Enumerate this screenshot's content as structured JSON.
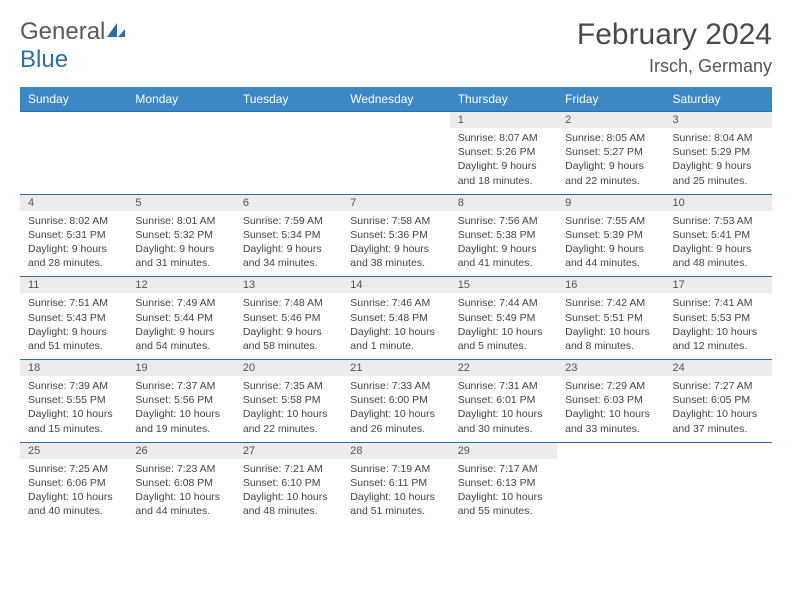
{
  "brand": {
    "text1": "General",
    "text2": "Blue"
  },
  "title": "February 2024",
  "location": "Irsch, Germany",
  "colors": {
    "header_bg": "#3b88c4",
    "header_text": "#ffffff",
    "daynum_bg": "#ececec",
    "border": "#2d6ea8",
    "body_text": "#444444",
    "title_text": "#4a4a4a"
  },
  "day_headers": [
    "Sunday",
    "Monday",
    "Tuesday",
    "Wednesday",
    "Thursday",
    "Friday",
    "Saturday"
  ],
  "weeks": [
    [
      null,
      null,
      null,
      null,
      {
        "n": "1",
        "sr": "8:07 AM",
        "ss": "5:26 PM",
        "dl": "9 hours and 18 minutes."
      },
      {
        "n": "2",
        "sr": "8:05 AM",
        "ss": "5:27 PM",
        "dl": "9 hours and 22 minutes."
      },
      {
        "n": "3",
        "sr": "8:04 AM",
        "ss": "5:29 PM",
        "dl": "9 hours and 25 minutes."
      }
    ],
    [
      {
        "n": "4",
        "sr": "8:02 AM",
        "ss": "5:31 PM",
        "dl": "9 hours and 28 minutes."
      },
      {
        "n": "5",
        "sr": "8:01 AM",
        "ss": "5:32 PM",
        "dl": "9 hours and 31 minutes."
      },
      {
        "n": "6",
        "sr": "7:59 AM",
        "ss": "5:34 PM",
        "dl": "9 hours and 34 minutes."
      },
      {
        "n": "7",
        "sr": "7:58 AM",
        "ss": "5:36 PM",
        "dl": "9 hours and 38 minutes."
      },
      {
        "n": "8",
        "sr": "7:56 AM",
        "ss": "5:38 PM",
        "dl": "9 hours and 41 minutes."
      },
      {
        "n": "9",
        "sr": "7:55 AM",
        "ss": "5:39 PM",
        "dl": "9 hours and 44 minutes."
      },
      {
        "n": "10",
        "sr": "7:53 AM",
        "ss": "5:41 PM",
        "dl": "9 hours and 48 minutes."
      }
    ],
    [
      {
        "n": "11",
        "sr": "7:51 AM",
        "ss": "5:43 PM",
        "dl": "9 hours and 51 minutes."
      },
      {
        "n": "12",
        "sr": "7:49 AM",
        "ss": "5:44 PM",
        "dl": "9 hours and 54 minutes."
      },
      {
        "n": "13",
        "sr": "7:48 AM",
        "ss": "5:46 PM",
        "dl": "9 hours and 58 minutes."
      },
      {
        "n": "14",
        "sr": "7:46 AM",
        "ss": "5:48 PM",
        "dl": "10 hours and 1 minute."
      },
      {
        "n": "15",
        "sr": "7:44 AM",
        "ss": "5:49 PM",
        "dl": "10 hours and 5 minutes."
      },
      {
        "n": "16",
        "sr": "7:42 AM",
        "ss": "5:51 PM",
        "dl": "10 hours and 8 minutes."
      },
      {
        "n": "17",
        "sr": "7:41 AM",
        "ss": "5:53 PM",
        "dl": "10 hours and 12 minutes."
      }
    ],
    [
      {
        "n": "18",
        "sr": "7:39 AM",
        "ss": "5:55 PM",
        "dl": "10 hours and 15 minutes."
      },
      {
        "n": "19",
        "sr": "7:37 AM",
        "ss": "5:56 PM",
        "dl": "10 hours and 19 minutes."
      },
      {
        "n": "20",
        "sr": "7:35 AM",
        "ss": "5:58 PM",
        "dl": "10 hours and 22 minutes."
      },
      {
        "n": "21",
        "sr": "7:33 AM",
        "ss": "6:00 PM",
        "dl": "10 hours and 26 minutes."
      },
      {
        "n": "22",
        "sr": "7:31 AM",
        "ss": "6:01 PM",
        "dl": "10 hours and 30 minutes."
      },
      {
        "n": "23",
        "sr": "7:29 AM",
        "ss": "6:03 PM",
        "dl": "10 hours and 33 minutes."
      },
      {
        "n": "24",
        "sr": "7:27 AM",
        "ss": "6:05 PM",
        "dl": "10 hours and 37 minutes."
      }
    ],
    [
      {
        "n": "25",
        "sr": "7:25 AM",
        "ss": "6:06 PM",
        "dl": "10 hours and 40 minutes."
      },
      {
        "n": "26",
        "sr": "7:23 AM",
        "ss": "6:08 PM",
        "dl": "10 hours and 44 minutes."
      },
      {
        "n": "27",
        "sr": "7:21 AM",
        "ss": "6:10 PM",
        "dl": "10 hours and 48 minutes."
      },
      {
        "n": "28",
        "sr": "7:19 AM",
        "ss": "6:11 PM",
        "dl": "10 hours and 51 minutes."
      },
      {
        "n": "29",
        "sr": "7:17 AM",
        "ss": "6:13 PM",
        "dl": "10 hours and 55 minutes."
      },
      null,
      null
    ]
  ],
  "labels": {
    "sunrise": "Sunrise:",
    "sunset": "Sunset:",
    "daylight": "Daylight:"
  }
}
